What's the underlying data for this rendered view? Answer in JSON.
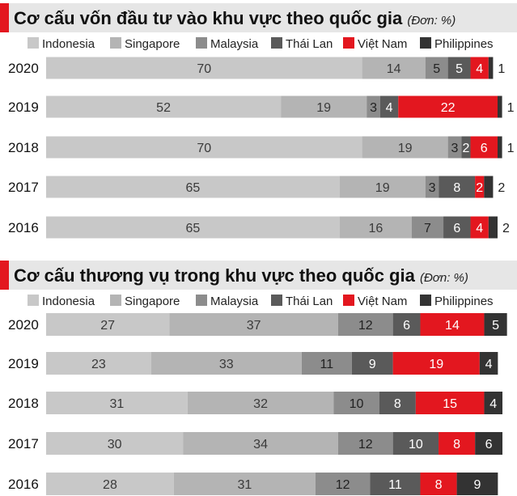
{
  "chart_data": [
    {
      "type": "bar",
      "orientation": "horizontal",
      "stacked": true,
      "title": "Cơ cấu vốn đầu tư vào khu vực theo quốc gia",
      "unit_label": "(Đơn: %)",
      "categories": [
        "2020",
        "2019",
        "2018",
        "2017",
        "2016"
      ],
      "xlim": [
        0,
        100
      ],
      "series": [
        {
          "name": "Indonesia",
          "color": "#c8c8c8",
          "label_color": "#3a3a3a",
          "values": [
            70,
            52,
            70,
            65,
            65
          ]
        },
        {
          "name": "Singapore",
          "color": "#b4b4b4",
          "label_color": "#3a3a3a",
          "values": [
            14,
            19,
            19,
            19,
            16
          ]
        },
        {
          "name": "Malaysia",
          "color": "#8c8c8c",
          "label_color": "#222222",
          "values": [
            5,
            3,
            3,
            3,
            7
          ]
        },
        {
          "name": "Thái Lan",
          "color": "#5a5a5a",
          "label_color": "#ffffff",
          "values": [
            5,
            4,
            2,
            8,
            6
          ]
        },
        {
          "name": "Việt Nam",
          "color": "#e3171f",
          "label_color": "#ffffff",
          "values": [
            4,
            22,
            6,
            2,
            4
          ]
        },
        {
          "name": "Philippines",
          "color": "#333333",
          "label_color": "#ffffff",
          "values": [
            1,
            1,
            1,
            2,
            2
          ]
        }
      ]
    },
    {
      "type": "bar",
      "orientation": "horizontal",
      "stacked": true,
      "title": "Cơ cấu thương vụ trong khu vực theo quốc gia",
      "unit_label": "(Đơn: %)",
      "categories": [
        "2020",
        "2019",
        "2018",
        "2017",
        "2016"
      ],
      "xlim": [
        0,
        100
      ],
      "series": [
        {
          "name": "Indonesia",
          "color": "#c8c8c8",
          "label_color": "#3a3a3a",
          "values": [
            27,
            23,
            31,
            30,
            28
          ]
        },
        {
          "name": "Singapore",
          "color": "#b4b4b4",
          "label_color": "#3a3a3a",
          "values": [
            37,
            33,
            32,
            34,
            31
          ]
        },
        {
          "name": "Malaysia",
          "color": "#8c8c8c",
          "label_color": "#222222",
          "values": [
            12,
            11,
            10,
            12,
            12
          ]
        },
        {
          "name": "Thái Lan",
          "color": "#5a5a5a",
          "label_color": "#ffffff",
          "values": [
            6,
            9,
            8,
            10,
            11
          ]
        },
        {
          "name": "Việt Nam",
          "color": "#e3171f",
          "label_color": "#ffffff",
          "values": [
            14,
            19,
            15,
            8,
            8
          ]
        },
        {
          "name": "Philippines",
          "color": "#333333",
          "label_color": "#ffffff",
          "values": [
            5,
            4,
            4,
            6,
            9
          ]
        }
      ]
    }
  ]
}
